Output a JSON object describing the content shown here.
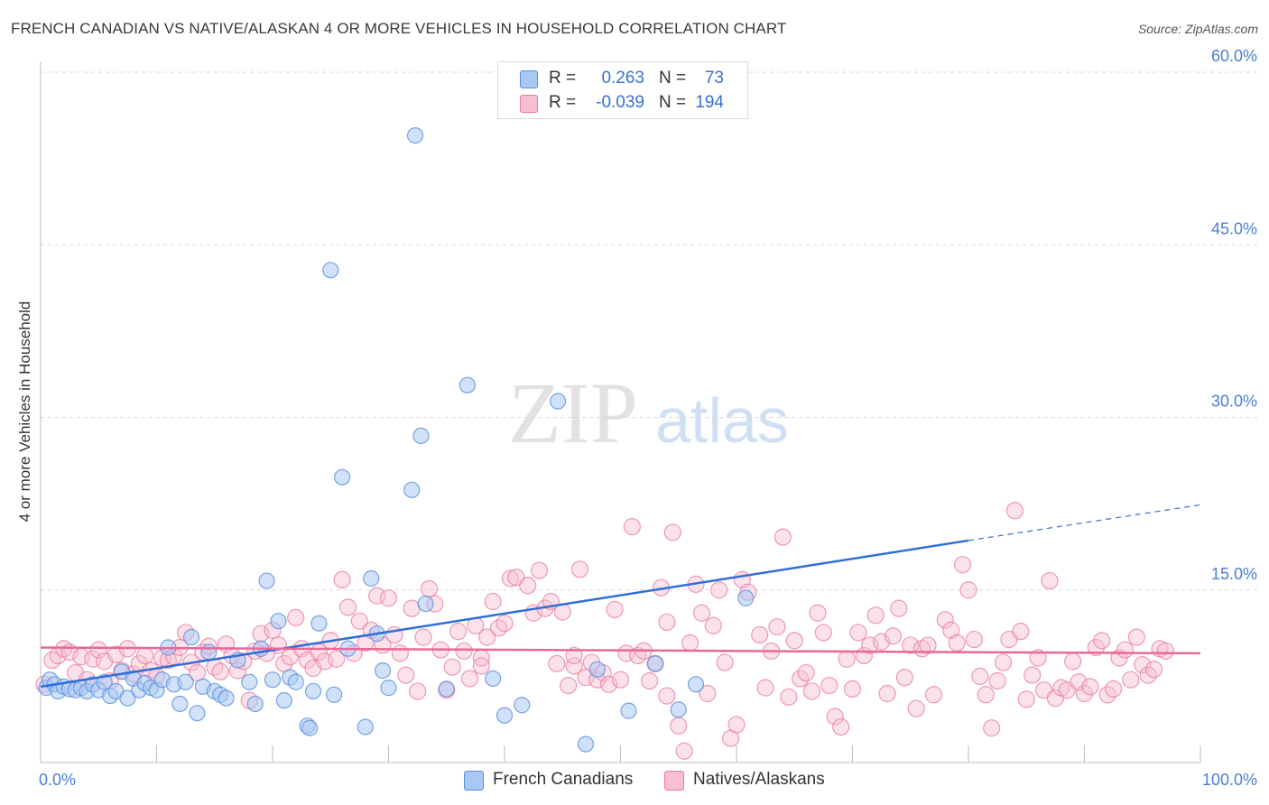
{
  "title": "FRENCH CANADIAN VS NATIVE/ALASKAN 4 OR MORE VEHICLES IN HOUSEHOLD CORRELATION CHART",
  "source": "Source: ZipAtlas.com",
  "watermark": {
    "zip": "ZIP",
    "atlas": "atlas"
  },
  "colors": {
    "blue_fill": "#a9c8f3",
    "blue_stroke": "#5b8fe0",
    "blue_line": "#2f6fd6",
    "pink_fill": "#f7bfd0",
    "pink_stroke": "#e8799f",
    "pink_line": "#e8689a",
    "tick_text": "#4a7fd4",
    "grid": "#d8d8d8"
  },
  "legend_top": {
    "rows": [
      {
        "r_label": "R =",
        "r_value": "0.263",
        "n_label": "N =",
        "n_value": "73",
        "series": "blue"
      },
      {
        "r_label": "R =",
        "r_value": "-0.039",
        "n_label": "N =",
        "n_value": "194",
        "series": "pink"
      }
    ]
  },
  "legend_bottom": [
    {
      "label": "French Canadians",
      "series": "blue"
    },
    {
      "label": "Natives/Alaskans",
      "series": "pink"
    }
  ],
  "chart_data": {
    "type": "scatter",
    "title": "FRENCH CANADIAN VS NATIVE/ALASKAN 4 OR MORE VEHICLES IN HOUSEHOLD CORRELATION CHART",
    "xlabel": "",
    "ylabel": "4 or more Vehicles in Household",
    "xlim": [
      0,
      100
    ],
    "ylim": [
      0,
      60
    ],
    "x_tick_labels": [
      "0.0%",
      "100.0%"
    ],
    "y_ticks": [
      15,
      30,
      45,
      60
    ],
    "y_tick_labels": [
      "15.0%",
      "30.0%",
      "45.0%",
      "60.0%"
    ],
    "grid": true,
    "legend": "top-center",
    "series": [
      {
        "name": "French Canadians",
        "color": "#a9c8f3",
        "trend": {
          "x": [
            0,
            80
          ],
          "y": [
            6.6,
            19.3
          ],
          "dashed_to": [
            100,
            22.4
          ]
        },
        "points": [
          [
            0.5,
            6.5
          ],
          [
            0.8,
            7.2
          ],
          [
            1.2,
            6.8
          ],
          [
            1.5,
            6.2
          ],
          [
            2.0,
            6.6
          ],
          [
            2.5,
            6.4
          ],
          [
            3.0,
            6.3
          ],
          [
            3.5,
            6.5
          ],
          [
            4.0,
            6.2
          ],
          [
            4.5,
            6.8
          ],
          [
            5.0,
            6.3
          ],
          [
            5.5,
            7.0
          ],
          [
            6.0,
            5.8
          ],
          [
            6.5,
            6.2
          ],
          [
            7.0,
            7.9
          ],
          [
            7.5,
            5.6
          ],
          [
            8.0,
            7.3
          ],
          [
            8.5,
            6.3
          ],
          [
            9.0,
            6.9
          ],
          [
            9.5,
            6.5
          ],
          [
            10.0,
            6.3
          ],
          [
            10.5,
            7.2
          ],
          [
            11.0,
            10.0
          ],
          [
            11.5,
            6.8
          ],
          [
            12.0,
            5.1
          ],
          [
            12.5,
            7.0
          ],
          [
            13.0,
            10.9
          ],
          [
            13.5,
            4.3
          ],
          [
            14.0,
            6.6
          ],
          [
            14.5,
            9.6
          ],
          [
            15.0,
            6.2
          ],
          [
            15.5,
            5.9
          ],
          [
            16.0,
            5.6
          ],
          [
            17.0,
            8.9
          ],
          [
            18.0,
            7.0
          ],
          [
            18.5,
            5.1
          ],
          [
            19.0,
            9.9
          ],
          [
            19.5,
            15.8
          ],
          [
            20.0,
            7.2
          ],
          [
            20.5,
            12.3
          ],
          [
            21.0,
            5.4
          ],
          [
            21.5,
            7.4
          ],
          [
            22.0,
            7.0
          ],
          [
            23.0,
            3.2
          ],
          [
            23.2,
            3.0
          ],
          [
            23.5,
            6.2
          ],
          [
            24.0,
            12.1
          ],
          [
            25.0,
            42.8
          ],
          [
            25.3,
            5.9
          ],
          [
            26.0,
            24.8
          ],
          [
            26.5,
            9.9
          ],
          [
            28.0,
            3.1
          ],
          [
            28.5,
            16.0
          ],
          [
            29.0,
            11.2
          ],
          [
            29.5,
            8.0
          ],
          [
            30.0,
            6.5
          ],
          [
            32.0,
            23.7
          ],
          [
            32.3,
            54.5
          ],
          [
            32.8,
            28.4
          ],
          [
            33.2,
            13.8
          ],
          [
            36.8,
            32.8
          ],
          [
            39.0,
            7.3
          ],
          [
            40.0,
            4.1
          ],
          [
            41.5,
            5.0
          ],
          [
            44.6,
            31.4
          ],
          [
            47.0,
            1.6
          ],
          [
            50.7,
            4.5
          ],
          [
            53.0,
            8.6
          ],
          [
            55.0,
            4.6
          ],
          [
            56.5,
            6.8
          ],
          [
            60.8,
            14.3
          ],
          [
            48.0,
            8.1
          ],
          [
            35.0,
            6.4
          ]
        ]
      },
      {
        "name": "Natives/Alaskans",
        "color": "#f7bfd0",
        "trend": {
          "x": [
            0,
            100
          ],
          "y": [
            10.0,
            9.5
          ]
        },
        "points": [
          [
            0.3,
            6.8
          ],
          [
            1.0,
            8.9
          ],
          [
            1.5,
            9.3
          ],
          [
            2.0,
            9.9
          ],
          [
            2.5,
            9.6
          ],
          [
            3.0,
            7.8
          ],
          [
            3.5,
            9.2
          ],
          [
            4.0,
            7.2
          ],
          [
            4.5,
            9.0
          ],
          [
            5.0,
            9.8
          ],
          [
            5.5,
            8.8
          ],
          [
            6.0,
            7.1
          ],
          [
            6.5,
            9.4
          ],
          [
            7.0,
            8.0
          ],
          [
            7.5,
            9.9
          ],
          [
            8.0,
            7.7
          ],
          [
            8.5,
            8.6
          ],
          [
            9.0,
            9.3
          ],
          [
            9.5,
            8.0
          ],
          [
            10.0,
            7.5
          ],
          [
            10.5,
            9.1
          ],
          [
            11.0,
            8.9
          ],
          [
            11.5,
            9.2
          ],
          [
            12.0,
            10.0
          ],
          [
            12.5,
            11.3
          ],
          [
            13.0,
            8.7
          ],
          [
            13.5,
            7.8
          ],
          [
            14.0,
            9.6
          ],
          [
            14.5,
            10.1
          ],
          [
            15.0,
            8.3
          ],
          [
            15.5,
            7.9
          ],
          [
            16.0,
            10.3
          ],
          [
            16.5,
            9.3
          ],
          [
            17.0,
            8.0
          ],
          [
            17.5,
            8.8
          ],
          [
            18.0,
            5.4
          ],
          [
            18.5,
            9.7
          ],
          [
            19.0,
            11.2
          ],
          [
            19.5,
            9.5
          ],
          [
            20.0,
            11.5
          ],
          [
            20.5,
            10.2
          ],
          [
            21.0,
            8.6
          ],
          [
            21.5,
            9.2
          ],
          [
            22.0,
            12.6
          ],
          [
            22.5,
            9.9
          ],
          [
            23.0,
            8.9
          ],
          [
            23.5,
            8.2
          ],
          [
            24.0,
            9.6
          ],
          [
            24.5,
            8.8
          ],
          [
            25.0,
            10.6
          ],
          [
            25.5,
            9.0
          ],
          [
            26.0,
            15.9
          ],
          [
            26.5,
            13.5
          ],
          [
            27.0,
            9.5
          ],
          [
            27.5,
            12.3
          ],
          [
            28.0,
            10.4
          ],
          [
            28.5,
            11.5
          ],
          [
            29.0,
            14.5
          ],
          [
            29.5,
            10.2
          ],
          [
            30.0,
            14.3
          ],
          [
            30.5,
            11.1
          ],
          [
            31.0,
            9.5
          ],
          [
            31.5,
            7.6
          ],
          [
            32.0,
            13.4
          ],
          [
            32.5,
            6.2
          ],
          [
            33.0,
            10.9
          ],
          [
            33.5,
            15.1
          ],
          [
            34.0,
            13.8
          ],
          [
            34.5,
            9.8
          ],
          [
            35.0,
            6.3
          ],
          [
            35.5,
            8.3
          ],
          [
            36.0,
            11.4
          ],
          [
            36.5,
            9.7
          ],
          [
            37.0,
            7.3
          ],
          [
            37.5,
            11.9
          ],
          [
            38.0,
            9.1
          ],
          [
            38.5,
            10.9
          ],
          [
            39.0,
            14.0
          ],
          [
            39.5,
            11.7
          ],
          [
            40.0,
            12.1
          ],
          [
            40.5,
            16.0
          ],
          [
            41.0,
            16.1
          ],
          [
            42.0,
            15.4
          ],
          [
            42.5,
            13.0
          ],
          [
            43.0,
            16.7
          ],
          [
            43.5,
            13.4
          ],
          [
            44.0,
            14.0
          ],
          [
            44.5,
            8.6
          ],
          [
            45.0,
            13.1
          ],
          [
            45.5,
            6.7
          ],
          [
            46.0,
            8.4
          ],
          [
            46.5,
            16.8
          ],
          [
            47.0,
            7.4
          ],
          [
            47.5,
            8.7
          ],
          [
            48.0,
            7.2
          ],
          [
            48.5,
            7.8
          ],
          [
            49.0,
            6.8
          ],
          [
            49.5,
            13.3
          ],
          [
            50.0,
            7.2
          ],
          [
            50.5,
            9.5
          ],
          [
            51.0,
            20.5
          ],
          [
            51.5,
            9.3
          ],
          [
            52.0,
            9.7
          ],
          [
            52.5,
            7.1
          ],
          [
            53.0,
            8.6
          ],
          [
            53.5,
            15.2
          ],
          [
            54.0,
            12.2
          ],
          [
            54.5,
            20.0
          ],
          [
            55.0,
            3.2
          ],
          [
            55.5,
            1.0
          ],
          [
            56.0,
            10.4
          ],
          [
            56.5,
            15.5
          ],
          [
            57.0,
            13.0
          ],
          [
            57.5,
            6.0
          ],
          [
            58.0,
            11.9
          ],
          [
            58.5,
            15.0
          ],
          [
            59.0,
            8.7
          ],
          [
            59.5,
            2.1
          ],
          [
            60.0,
            3.3
          ],
          [
            60.5,
            15.9
          ],
          [
            61.0,
            14.8
          ],
          [
            62.0,
            11.1
          ],
          [
            62.5,
            6.5
          ],
          [
            63.0,
            9.7
          ],
          [
            63.5,
            11.8
          ],
          [
            64.0,
            19.6
          ],
          [
            64.5,
            5.7
          ],
          [
            65.0,
            10.6
          ],
          [
            65.5,
            7.3
          ],
          [
            66.0,
            7.8
          ],
          [
            67.0,
            13.0
          ],
          [
            67.5,
            11.3
          ],
          [
            68.0,
            6.7
          ],
          [
            68.5,
            4.0
          ],
          [
            69.0,
            3.1
          ],
          [
            69.5,
            9.0
          ],
          [
            70.0,
            6.4
          ],
          [
            70.5,
            11.3
          ],
          [
            71.0,
            9.3
          ],
          [
            71.5,
            10.2
          ],
          [
            72.0,
            12.8
          ],
          [
            72.5,
            10.5
          ],
          [
            73.0,
            6.0
          ],
          [
            73.5,
            11.0
          ],
          [
            74.0,
            13.4
          ],
          [
            74.5,
            7.4
          ],
          [
            75.0,
            10.2
          ],
          [
            75.5,
            4.7
          ],
          [
            76.0,
            9.9
          ],
          [
            76.5,
            10.2
          ],
          [
            77.0,
            5.9
          ],
          [
            78.0,
            12.4
          ],
          [
            78.5,
            11.5
          ],
          [
            79.0,
            10.4
          ],
          [
            79.5,
            17.2
          ],
          [
            80.0,
            15.0
          ],
          [
            80.5,
            10.7
          ],
          [
            81.0,
            7.5
          ],
          [
            81.5,
            5.9
          ],
          [
            82.0,
            3.0
          ],
          [
            82.5,
            7.1
          ],
          [
            83.0,
            8.7
          ],
          [
            83.5,
            10.7
          ],
          [
            84.0,
            21.9
          ],
          [
            84.5,
            11.4
          ],
          [
            85.0,
            5.5
          ],
          [
            85.5,
            7.6
          ],
          [
            86.0,
            9.1
          ],
          [
            86.5,
            6.3
          ],
          [
            87.0,
            15.8
          ],
          [
            87.5,
            5.6
          ],
          [
            88.0,
            6.5
          ],
          [
            88.5,
            6.3
          ],
          [
            89.0,
            8.8
          ],
          [
            89.5,
            7.0
          ],
          [
            90.0,
            6.0
          ],
          [
            90.5,
            6.6
          ],
          [
            91.0,
            10.0
          ],
          [
            91.5,
            10.6
          ],
          [
            92.0,
            5.9
          ],
          [
            92.5,
            6.4
          ],
          [
            93.0,
            9.1
          ],
          [
            93.5,
            9.8
          ],
          [
            94.0,
            7.2
          ],
          [
            94.5,
            10.9
          ],
          [
            95.0,
            8.5
          ],
          [
            95.5,
            7.6
          ],
          [
            96.0,
            8.1
          ],
          [
            96.5,
            9.9
          ],
          [
            97.0,
            9.7
          ],
          [
            66.5,
            6.2
          ],
          [
            54.0,
            5.8
          ],
          [
            46.0,
            9.3
          ],
          [
            38.0,
            8.4
          ]
        ]
      }
    ]
  }
}
